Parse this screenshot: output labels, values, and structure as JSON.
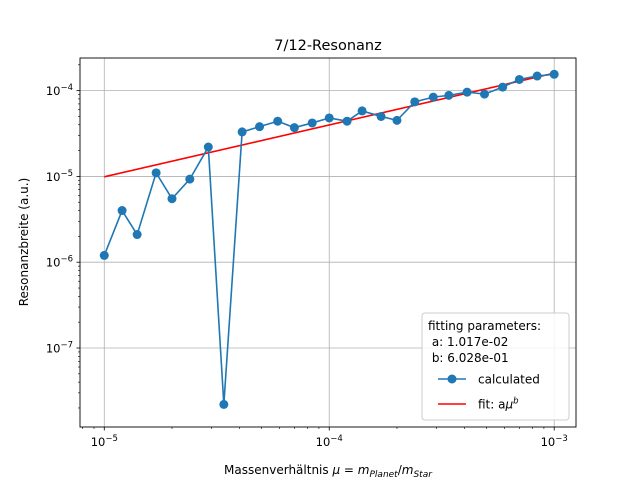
{
  "chart_data": {
    "type": "line",
    "title": "7/12-Resonanz",
    "xlabel": "Massenverhältnis μ = m_Planet/m_Star",
    "xlabel_parts": {
      "prefix": "Massenverhältnis ",
      "mu": "μ",
      "eq": " = ",
      "m1": "m",
      "sub1": "Planet",
      "slash": "/",
      "m2": "m",
      "sub2": "Star"
    },
    "ylabel": "Resonanzbreite (a.u.)",
    "x_scale": "log",
    "y_scale": "log",
    "xlim": [
      7.8e-06,
      0.00125
    ],
    "ylim": [
      1.2e-08,
      0.00024
    ],
    "grid": true,
    "x_ticks": [
      {
        "value": 1e-05,
        "base": "10",
        "exp": "−5"
      },
      {
        "value": 0.0001,
        "base": "10",
        "exp": "−4"
      },
      {
        "value": 0.001,
        "base": "10",
        "exp": "−3"
      }
    ],
    "y_ticks": [
      {
        "value": 1e-07,
        "base": "10",
        "exp": "−7"
      },
      {
        "value": 1e-06,
        "base": "10",
        "exp": "−6"
      },
      {
        "value": 1e-05,
        "base": "10",
        "exp": "−5"
      },
      {
        "value": 0.0001,
        "base": "10",
        "exp": "−4"
      }
    ],
    "legend": {
      "placement": "lower-right",
      "title_lines": [
        "fitting parameters:",
        " a: 1.017e-02",
        " b: 6.028e-01"
      ],
      "entries": [
        "calculated",
        "fit: aμ^b"
      ],
      "fit_label_parts": {
        "base": "fit: a",
        "mu": "μ",
        "exp": "b"
      }
    },
    "series": [
      {
        "name": "calculated",
        "color": "#1f77b4",
        "marker": "circle",
        "x": [
          1e-05,
          1.2e-05,
          1.4e-05,
          1.7e-05,
          2e-05,
          2.4e-05,
          2.9e-05,
          3.4e-05,
          4.1e-05,
          4.9e-05,
          5.9e-05,
          7e-05,
          8.4e-05,
          0.0001,
          0.00012,
          0.00014,
          0.00017,
          0.0002,
          0.00024,
          0.00029,
          0.00034,
          0.00041,
          0.00049,
          0.00059,
          0.0007,
          0.00084,
          0.001
        ],
        "values": [
          1.2e-06,
          4e-06,
          2.1e-06,
          1.1e-05,
          5.5e-06,
          9.3e-06,
          2.2e-05,
          2.2e-08,
          3.3e-05,
          3.8e-05,
          4.4e-05,
          3.7e-05,
          4.2e-05,
          4.8e-05,
          4.4e-05,
          5.8e-05,
          5e-05,
          4.5e-05,
          7.4e-05,
          8.4e-05,
          8.8e-05,
          9.6e-05,
          9.1e-05,
          0.00011,
          0.000135,
          0.000148,
          0.000155
        ]
      },
      {
        "name": "fit: aμ^b",
        "color": "#ff0000",
        "marker": "none",
        "a": 0.01017,
        "b": 0.6028,
        "x": [
          1e-05,
          0.001
        ],
        "values": [
          9.9e-06,
          0.00016
        ]
      }
    ]
  }
}
